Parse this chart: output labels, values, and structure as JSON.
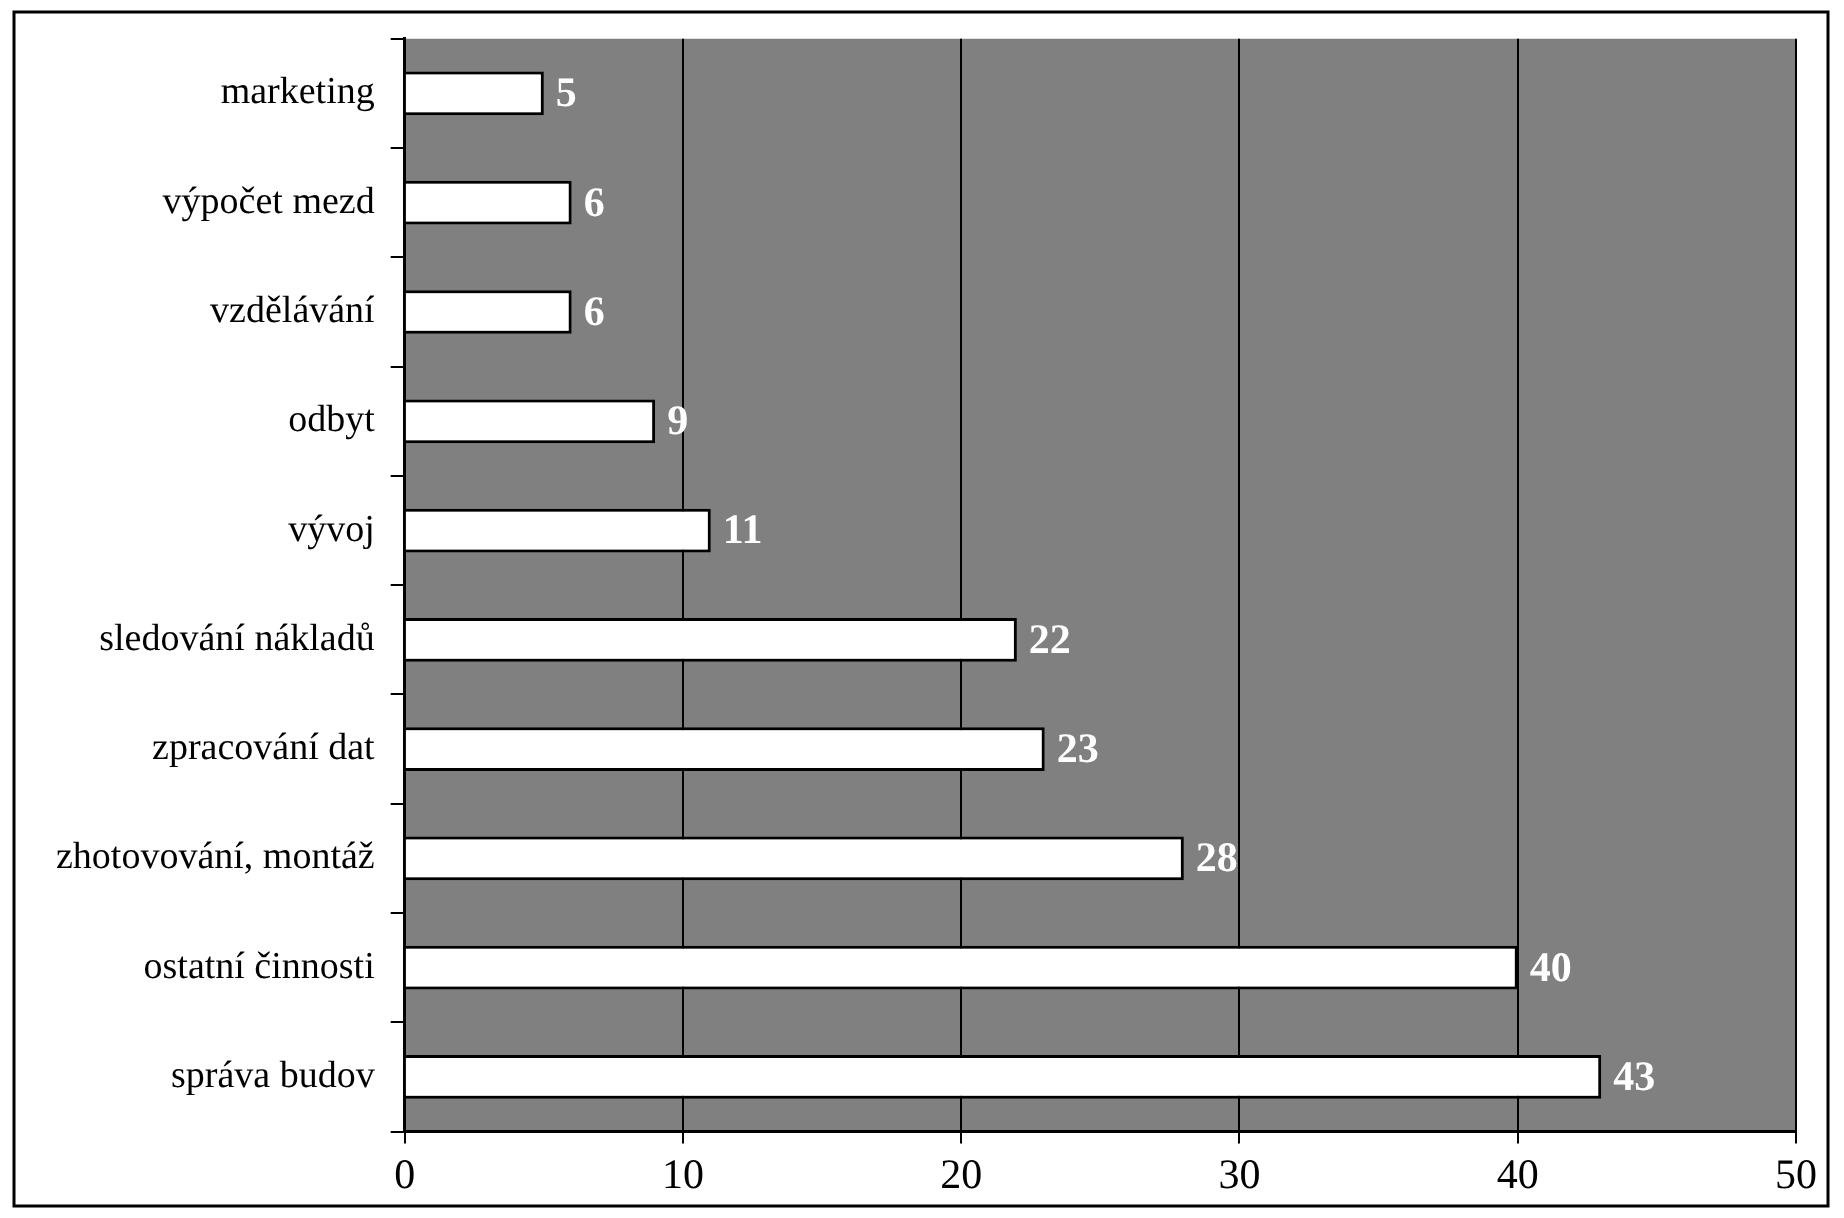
{
  "chart_data": {
    "type": "bar",
    "orientation": "horizontal",
    "categories": [
      "marketing",
      "výpočet mezd",
      "vzdělávání",
      "odbyt",
      "vývoj",
      "sledování nákladů",
      "zpracování dat",
      "zhotovování, montáž",
      "ostatní činnosti",
      "správa budov"
    ],
    "values": [
      5,
      6,
      6,
      9,
      11,
      22,
      23,
      28,
      40,
      43
    ],
    "color": "#ffffff",
    "xlim": [
      0,
      50
    ],
    "xticks": [
      0,
      10,
      20,
      30,
      40,
      50
    ],
    "grid": "x",
    "data_labels": true,
    "legend": false
  }
}
